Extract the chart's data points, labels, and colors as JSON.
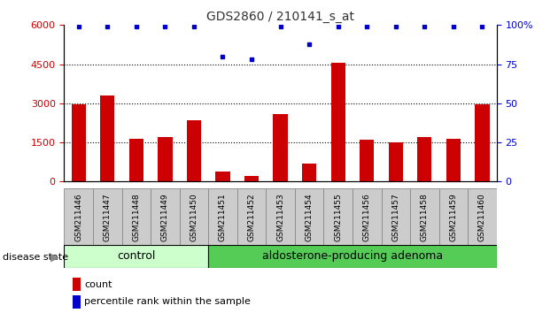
{
  "title": "GDS2860 / 210141_s_at",
  "samples": [
    "GSM211446",
    "GSM211447",
    "GSM211448",
    "GSM211449",
    "GSM211450",
    "GSM211451",
    "GSM211452",
    "GSM211453",
    "GSM211454",
    "GSM211455",
    "GSM211456",
    "GSM211457",
    "GSM211458",
    "GSM211459",
    "GSM211460"
  ],
  "counts": [
    2950,
    3300,
    1650,
    1700,
    2350,
    400,
    200,
    2600,
    700,
    4550,
    1600,
    1500,
    1700,
    1650,
    2950
  ],
  "percentiles": [
    99,
    99,
    99,
    99,
    99,
    80,
    78,
    99,
    88,
    99,
    99,
    99,
    99,
    99,
    99
  ],
  "ylim_left": [
    0,
    6000
  ],
  "ylim_right": [
    0,
    100
  ],
  "yticks_left": [
    0,
    1500,
    3000,
    4500,
    6000
  ],
  "yticks_right": [
    0,
    25,
    50,
    75,
    100
  ],
  "bar_color": "#cc0000",
  "dot_color": "#0000cc",
  "n_control": 5,
  "n_adenoma": 10,
  "control_label": "control",
  "adenoma_label": "aldosterone-producing adenoma",
  "disease_state_label": "disease state",
  "legend_count_label": "count",
  "legend_percentile_label": "percentile rank within the sample",
  "control_color": "#ccffcc",
  "adenoma_color": "#55cc55",
  "label_bg_color": "#cccccc",
  "title_color": "#333333",
  "left_axis_color": "#cc0000",
  "right_axis_color": "#0000cc",
  "bar_width": 0.5
}
